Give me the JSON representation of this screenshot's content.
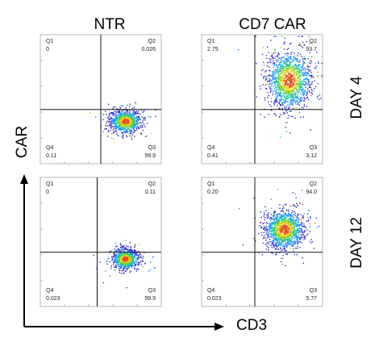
{
  "columns": [
    "NTR",
    "CD7 CAR"
  ],
  "rows": [
    "DAY 4",
    "DAY 12"
  ],
  "y_axis_label": "CAR",
  "x_axis_label": "CD3",
  "chart_data": [
    {
      "type": "scatter",
      "column": "NTR",
      "row": "DAY 4",
      "quadrants": {
        "Q1": "0",
        "Q2": "0.026",
        "Q3": "99.9",
        "Q4": "0.11"
      },
      "gate": {
        "x": 0.5,
        "y": 0.42
      },
      "population": {
        "cx": 0.7,
        "cy": 0.33,
        "sx": 0.065,
        "sy": 0.045,
        "n": 900
      }
    },
    {
      "type": "scatter",
      "column": "CD7 CAR",
      "row": "DAY 4",
      "quadrants": {
        "Q1": "2.75",
        "Q2": "93.7",
        "Q3": "3.12",
        "Q4": "0.41"
      },
      "gate": {
        "x": 0.44,
        "y": 0.42
      },
      "population": {
        "cx": 0.72,
        "cy": 0.65,
        "sx": 0.09,
        "sy": 0.11,
        "n": 1300
      }
    },
    {
      "type": "scatter",
      "column": "NTR",
      "row": "DAY 12",
      "quadrants": {
        "Q1": "0",
        "Q2": "0.11",
        "Q3": "99.9",
        "Q4": "0.023"
      },
      "gate": {
        "x": 0.47,
        "y": 0.42
      },
      "population": {
        "cx": 0.7,
        "cy": 0.37,
        "sx": 0.055,
        "sy": 0.04,
        "n": 800
      }
    },
    {
      "type": "scatter",
      "column": "CD7 CAR",
      "row": "DAY 12",
      "quadrants": {
        "Q1": "0.20",
        "Q2": "94.0",
        "Q3": "5.77",
        "Q4": "0.023"
      },
      "gate": {
        "x": 0.44,
        "y": 0.42
      },
      "population": {
        "cx": 0.68,
        "cy": 0.6,
        "sx": 0.08,
        "sy": 0.075,
        "n": 1200
      }
    }
  ]
}
